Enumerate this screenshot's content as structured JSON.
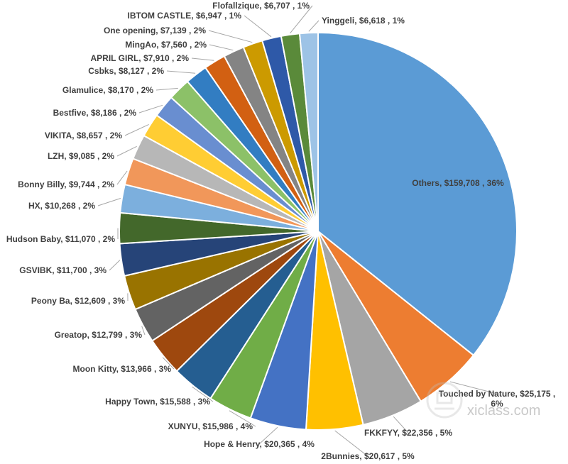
{
  "chart_data": {
    "type": "pie",
    "title": "",
    "slices": [
      {
        "label": "Others",
        "value": 159708,
        "display": "Others, $159,708 , 36%",
        "color": "#5b9bd5"
      },
      {
        "label": "Touched by Nature",
        "value": 25175,
        "display": "Touched by Nature, $25,175 , 6%",
        "color": "#ed7d31"
      },
      {
        "label": "FKKFYY",
        "value": 22356,
        "display": "FKKFYY, $22,356 , 5%",
        "color": "#a5a5a5"
      },
      {
        "label": "2Bunnies",
        "value": 20617,
        "display": "2Bunnies, $20,617 , 5%",
        "color": "#ffc000"
      },
      {
        "label": "Hope & Henry",
        "value": 20365,
        "display": "Hope & Henry, $20,365 , 4%",
        "color": "#4472c4"
      },
      {
        "label": "XUNYU",
        "value": 15986,
        "display": "XUNYU, $15,986 , 4%",
        "color": "#70ad47"
      },
      {
        "label": "Happy Town",
        "value": 15588,
        "display": "Happy Town, $15,588 , 3%",
        "color": "#255e91"
      },
      {
        "label": "Moon Kitty",
        "value": 13966,
        "display": "Moon Kitty, $13,966 , 3%",
        "color": "#9e480e"
      },
      {
        "label": "Greatop",
        "value": 12799,
        "display": "Greatop, $12,799 , 3%",
        "color": "#636363"
      },
      {
        "label": "Peony Ba",
        "value": 12609,
        "display": "Peony Ba, $12,609 , 3%",
        "color": "#997300"
      },
      {
        "label": "GSVIBK",
        "value": 11700,
        "display": "GSVIBK, $11,700 , 3%",
        "color": "#264478"
      },
      {
        "label": "Hudson Baby",
        "value": 11070,
        "display": "Hudson Baby, $11,070 , 2%",
        "color": "#43682b"
      },
      {
        "label": "HX",
        "value": 10268,
        "display": "HX, $10,268 , 2%",
        "color": "#7cafdd"
      },
      {
        "label": "Bonny Billy",
        "value": 9744,
        "display": "Bonny Billy, $9,744 , 2%",
        "color": "#f1975a"
      },
      {
        "label": "LZH",
        "value": 9085,
        "display": "LZH, $9,085 , 2%",
        "color": "#b7b7b7"
      },
      {
        "label": "VIKITA",
        "value": 8657,
        "display": "VIKITA, $8,657 , 2%",
        "color": "#ffcd33"
      },
      {
        "label": "Bestfive",
        "value": 8186,
        "display": "Bestfive, $8,186 , 2%",
        "color": "#698ed0"
      },
      {
        "label": "Glamulice",
        "value": 8170,
        "display": "Glamulice, $8,170 , 2%",
        "color": "#8cc168"
      },
      {
        "label": "Csbks",
        "value": 8127,
        "display": "Csbks, $8,127 , 2%",
        "color": "#327dc2"
      },
      {
        "label": "APRIL GIRL",
        "value": 7910,
        "display": "APRIL GIRL, $7,910 , 2%",
        "color": "#d26012"
      },
      {
        "label": "MingAo",
        "value": 7560,
        "display": "MingAo, $7,560 , 2%",
        "color": "#848484"
      },
      {
        "label": "One opening",
        "value": 7139,
        "display": "One opening, $7,139 , 2%",
        "color": "#cc9a00"
      },
      {
        "label": "IBTOM CASTLE",
        "value": 6947,
        "display": "IBTOM CASTLE, $6,947 , 1%",
        "color": "#2e59a8"
      },
      {
        "label": "Flofallzique",
        "value": 6707,
        "display": "Flofallzique, $6,707 , 1%",
        "color": "#5a8a3a"
      },
      {
        "label": "Yinggeli",
        "value": 6618,
        "display": "Yinggeli, $6,618 , 1%",
        "color": "#9dc3e6"
      }
    ]
  },
  "watermark": {
    "site": "xiclass.com"
  }
}
